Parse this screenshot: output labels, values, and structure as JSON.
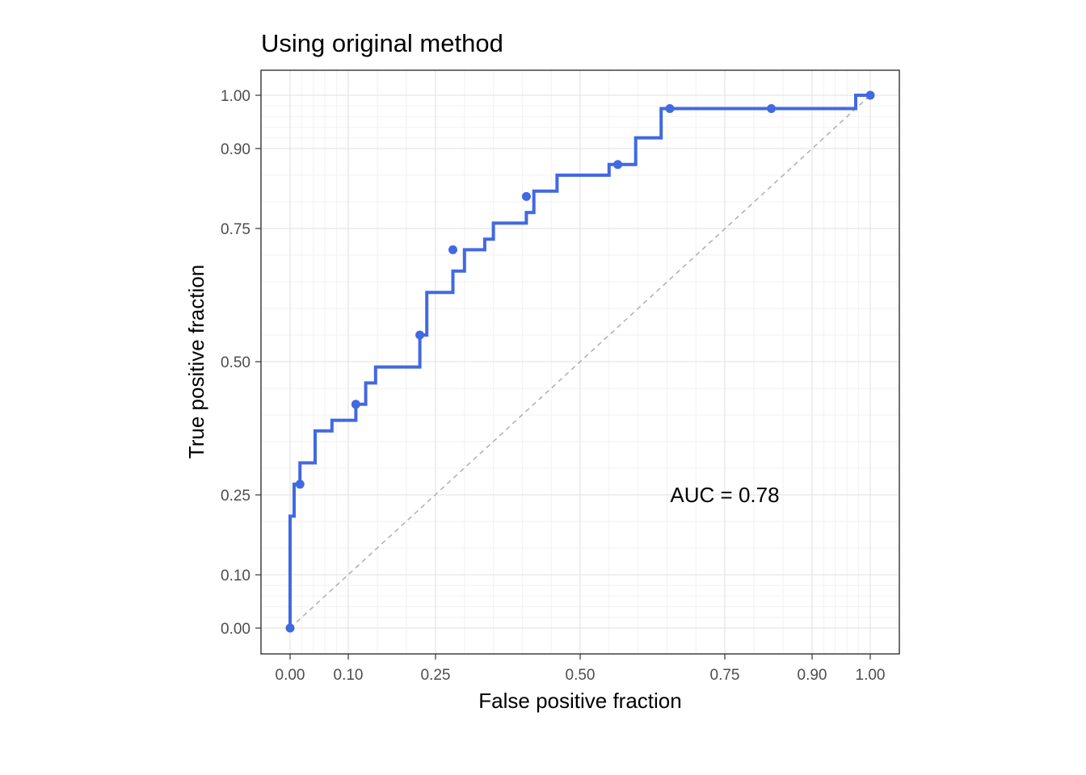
{
  "chart_data": {
    "type": "line",
    "title": "Using original method",
    "xlabel": "False positive fraction",
    "ylabel": "True positive fraction",
    "xlim": [
      -0.05,
      1.05
    ],
    "ylim": [
      -0.05,
      1.05
    ],
    "x_ticks": [
      0,
      0.1,
      0.25,
      0.5,
      0.75,
      0.9,
      1.0
    ],
    "x_tick_labels": [
      "0.00",
      "0.10",
      "0.25",
      "0.50",
      "0.75",
      "0.90",
      "1.00"
    ],
    "y_ticks": [
      0,
      0.1,
      0.25,
      0.5,
      0.75,
      0.9,
      1.0
    ],
    "y_tick_labels": [
      "0.00",
      "0.10",
      "0.25",
      "0.50",
      "0.75",
      "0.90",
      "1.00"
    ],
    "axis_scale": "probit-style spacing (dense near 0 and 1)",
    "grid": true,
    "reference_line": {
      "from": [
        0,
        0
      ],
      "to": [
        1,
        1
      ],
      "style": "dashed",
      "color": "#b3b3b3"
    },
    "annotation": {
      "text": "AUC = 0.78",
      "x": 0.75,
      "y": 0.25
    },
    "series": [
      {
        "color": "#4169e1",
        "step_x": [
          0,
          0,
          0.007,
          0.007,
          0.017,
          0.017,
          0.043,
          0.043,
          0.072,
          0.072,
          0.113,
          0.113,
          0.13,
          0.13,
          0.147,
          0.147,
          0.223,
          0.223,
          0.235,
          0.235,
          0.28,
          0.28,
          0.3,
          0.3,
          0.335,
          0.335,
          0.35,
          0.35,
          0.407,
          0.407,
          0.42,
          0.42,
          0.46,
          0.46,
          0.55,
          0.55,
          0.596,
          0.596,
          0.64,
          0.64,
          0.975,
          0.975,
          1.0
        ],
        "step_y": [
          0,
          0.21,
          0.21,
          0.27,
          0.27,
          0.31,
          0.31,
          0.37,
          0.37,
          0.39,
          0.39,
          0.42,
          0.42,
          0.46,
          0.46,
          0.49,
          0.49,
          0.55,
          0.55,
          0.63,
          0.63,
          0.67,
          0.67,
          0.71,
          0.71,
          0.73,
          0.73,
          0.76,
          0.76,
          0.78,
          0.78,
          0.82,
          0.82,
          0.85,
          0.85,
          0.87,
          0.87,
          0.92,
          0.92,
          0.975,
          0.975,
          1.0,
          1.0
        ],
        "points_x": [
          0,
          0.017,
          0.113,
          0.223,
          0.28,
          0.407,
          0.565,
          0.655,
          0.83,
          1.0
        ],
        "points_y": [
          0,
          0.27,
          0.42,
          0.55,
          0.71,
          0.81,
          0.87,
          0.975,
          0.975,
          1.0
        ]
      }
    ]
  }
}
